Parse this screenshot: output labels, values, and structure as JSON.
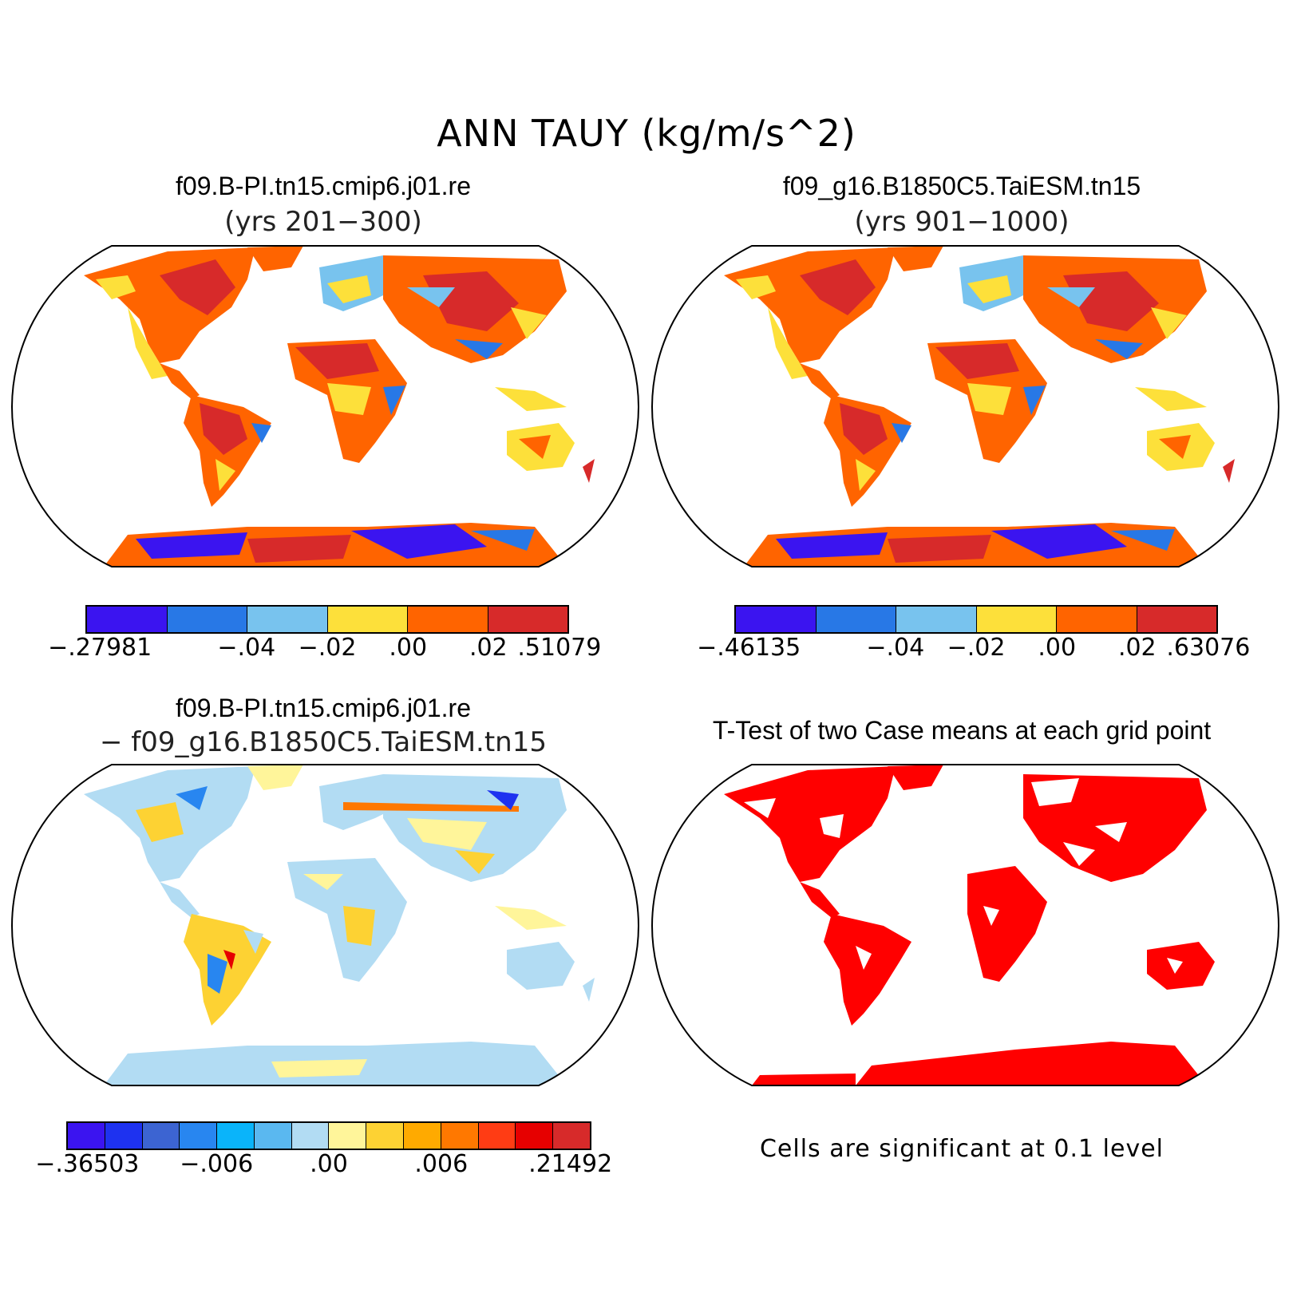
{
  "figure": {
    "title": "ANN TAUY (kg/m/s^2)"
  },
  "panels": [
    {
      "title": "f09.B-PI.tn15.cmip6.j01.re",
      "subtitle": "(yrs 201−300)",
      "colorbar": {
        "colors": [
          "#3b14f0",
          "#2878e6",
          "#78c3ee",
          "#fde03a",
          "#ff6400",
          "#d72a2a"
        ],
        "tick_labels": [
          "−.27981",
          "−.04",
          "−.02",
          ".00",
          ".02",
          ".51079"
        ]
      }
    },
    {
      "title": "f09_g16.B1850C5.TaiESM.tn15",
      "subtitle": "(yrs 901−1000)",
      "colorbar": {
        "colors": [
          "#3b14f0",
          "#2878e6",
          "#78c3ee",
          "#fde03a",
          "#ff6400",
          "#d72a2a"
        ],
        "tick_labels": [
          "−.46135",
          "−.04",
          "−.02",
          ".00",
          ".02",
          ".63076"
        ]
      }
    },
    {
      "title": "f09.B-PI.tn15.cmip6.j01.re",
      "subtitle": "− f09_g16.B1850C5.TaiESM.tn15",
      "colorbar": {
        "colors": [
          "#3b14f0",
          "#1e32f0",
          "#3c64d2",
          "#2886f0",
          "#0ab4fa",
          "#5ab8f0",
          "#b2dcf3",
          "#fff59a",
          "#fdd233",
          "#ffaa00",
          "#ff7800",
          "#ff3c14",
          "#e60000",
          "#d72a2a"
        ],
        "tick_labels": [
          "−.36503",
          "−.006",
          ".00",
          ".006",
          ".21492"
        ]
      }
    },
    {
      "title": "T-Test of two Case means at each grid point",
      "note": "Cells are significant at 0.1 level",
      "sig_color": "#ff0000"
    }
  ]
}
